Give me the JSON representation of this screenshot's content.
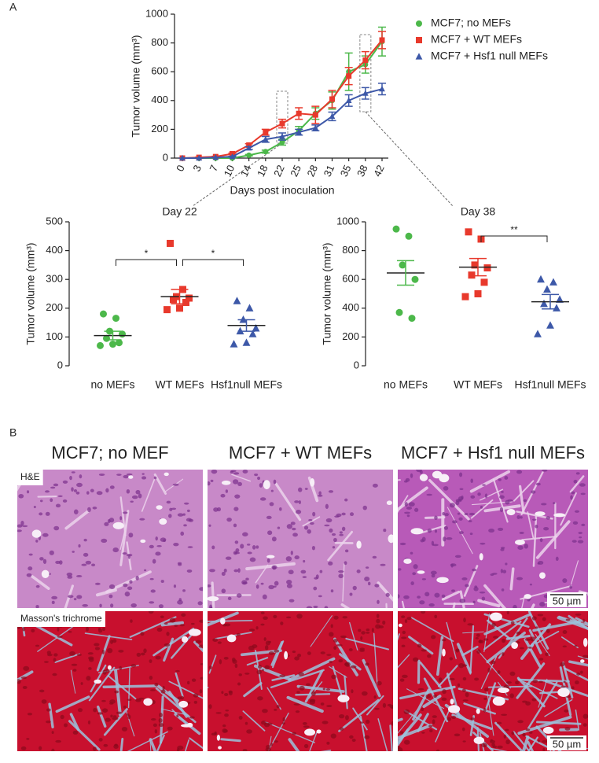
{
  "panel_a": {
    "label": "A"
  },
  "chart_data": [
    {
      "type": "line",
      "categories": [
        "0",
        "3",
        "7",
        "10",
        "14",
        "18",
        "22",
        "25",
        "28",
        "31",
        "35",
        "38",
        "42"
      ],
      "x_label": "Days post inoculation",
      "y_label": "Tumor volume (mm³)",
      "ylim": [
        0,
        1000
      ],
      "yticks": [
        0,
        200,
        400,
        600,
        800,
        1000
      ],
      "series": [
        {
          "name": "MCF7; no MEFs",
          "color": "#4cb84a",
          "marker": "circle",
          "values": [
            0,
            0,
            0,
            0,
            20,
            45,
            110,
            190,
            310,
            400,
            600,
            650,
            810
          ],
          "errors": [
            0,
            0,
            0,
            0,
            5,
            10,
            20,
            30,
            40,
            60,
            130,
            60,
            100
          ]
        },
        {
          "name": "MCF7 + WT MEFs",
          "color": "#e8392c",
          "marker": "square",
          "values": [
            0,
            5,
            10,
            30,
            90,
            180,
            240,
            310,
            300,
            410,
            570,
            680,
            820
          ],
          "errors": [
            0,
            2,
            3,
            5,
            10,
            20,
            30,
            40,
            60,
            60,
            60,
            60,
            60
          ]
        },
        {
          "name": "MCF7 + Hsf1 null MEFs",
          "color": "#3d58a8",
          "marker": "triangle",
          "values": [
            0,
            0,
            5,
            10,
            70,
            130,
            150,
            180,
            210,
            290,
            400,
            450,
            480
          ],
          "errors": [
            0,
            0,
            2,
            3,
            10,
            20,
            25,
            20,
            20,
            30,
            40,
            40,
            40
          ]
        }
      ]
    },
    {
      "type": "dot",
      "title": "Day 22",
      "y_label": "Tumor volume (mm³)",
      "categories": [
        "no MEFs",
        "WT MEFs",
        "Hsf1null MEFs"
      ],
      "ylim": [
        0,
        500
      ],
      "yticks": [
        0,
        100,
        200,
        300,
        400,
        500
      ],
      "colors": [
        "#4cb84a",
        "#e8392c",
        "#3d58a8"
      ],
      "markers": [
        "circle",
        "square",
        "triangle"
      ],
      "points": [
        [
          180,
          165,
          120,
          110,
          95,
          80,
          75,
          70
        ],
        [
          425,
          265,
          240,
          235,
          230,
          220,
          200,
          195
        ],
        [
          225,
          200,
          160,
          130,
          120,
          110,
          80,
          75
        ]
      ],
      "means": [
        105,
        240,
        140
      ],
      "errors": [
        15,
        25,
        20
      ],
      "significance": [
        {
          "between": [
            0,
            1
          ],
          "label": "*"
        },
        {
          "between": [
            1,
            2
          ],
          "label": "*"
        }
      ]
    },
    {
      "type": "dot",
      "title": "Day 38",
      "y_label": "Tumor volume (mm³)",
      "categories": [
        "no MEFs",
        "WT MEFs",
        "Hsf1null MEFs"
      ],
      "ylim": [
        0,
        1000
      ],
      "yticks": [
        0,
        200,
        400,
        600,
        800,
        1000
      ],
      "colors": [
        "#4cb84a",
        "#e8392c",
        "#3d58a8"
      ],
      "markers": [
        "circle",
        "square",
        "triangle"
      ],
      "points": [
        [
          950,
          900,
          700,
          600,
          370,
          330
        ],
        [
          930,
          880,
          700,
          680,
          630,
          580,
          500,
          480
        ],
        [
          600,
          580,
          530,
          460,
          430,
          400,
          280,
          220
        ]
      ],
      "means": [
        645,
        685,
        445
      ],
      "errors": [
        85,
        60,
        50
      ],
      "significance": [
        {
          "between": [
            1,
            2
          ],
          "label": "**"
        }
      ]
    }
  ],
  "panel_b": {
    "label": "B",
    "columns": [
      "MCF7; no MEF",
      "MCF7 + WT MEFs",
      "MCF7 + Hsf1 null MEFs"
    ],
    "rows": [
      "H&E",
      "Masson's trichrome"
    ],
    "scale_bar": "50 µm"
  }
}
